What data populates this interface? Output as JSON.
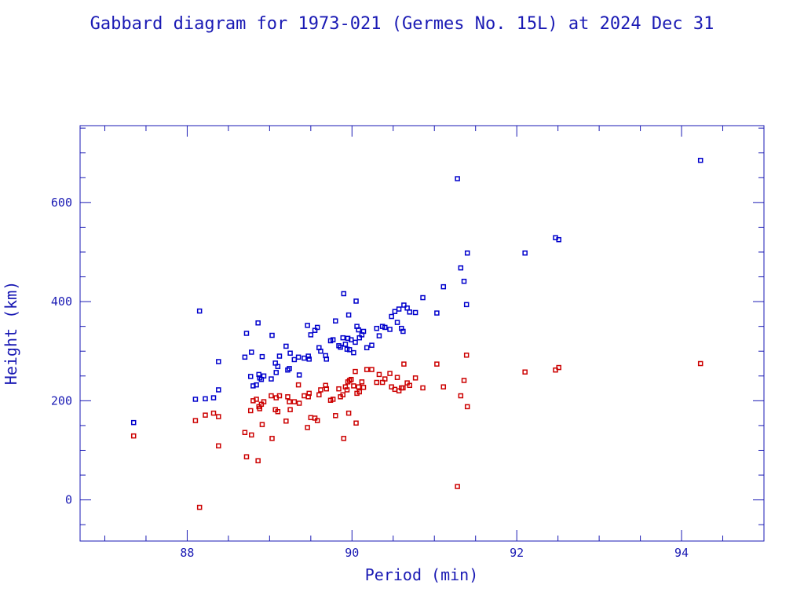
{
  "chart_data": {
    "type": "scatter",
    "title": "Gabbard diagram for 1973-021 (Germes No. 15L) at 2024 Dec 31",
    "xlabel": "Period (min)",
    "ylabel": "Height (km)",
    "xlim": [
      86.7,
      95.0
    ],
    "ylim": [
      -83,
      755
    ],
    "x_ticks": [
      "88",
      "90",
      "92",
      "94"
    ],
    "y_ticks": [
      "0",
      "200",
      "400",
      "600"
    ],
    "grid": false,
    "colors": {
      "axes": "#1a1ab4",
      "apogee": "#0000cc",
      "perigee": "#cc0000"
    },
    "series": [
      {
        "role": "apogee",
        "points": [
          [
            87.35,
            156
          ],
          [
            88.1,
            203
          ],
          [
            88.15,
            381
          ],
          [
            88.22,
            204
          ],
          [
            88.32,
            206
          ],
          [
            88.38,
            222
          ],
          [
            88.38,
            279
          ],
          [
            88.7,
            288
          ],
          [
            88.72,
            336
          ],
          [
            88.77,
            249
          ],
          [
            88.78,
            298
          ],
          [
            88.8,
            230
          ],
          [
            88.84,
            232
          ],
          [
            88.86,
            357
          ],
          [
            88.88,
            246
          ],
          [
            88.9,
            243
          ],
          [
            88.91,
            289
          ],
          [
            88.87,
            253
          ],
          [
            88.93,
            250
          ],
          [
            89.02,
            244
          ],
          [
            89.03,
            332
          ],
          [
            89.07,
            276
          ],
          [
            89.08,
            257
          ],
          [
            89.1,
            269
          ],
          [
            89.12,
            290
          ],
          [
            89.2,
            310
          ],
          [
            89.22,
            262
          ],
          [
            89.24,
            265
          ],
          [
            89.25,
            296
          ],
          [
            89.3,
            283
          ],
          [
            89.35,
            288
          ],
          [
            89.36,
            252
          ],
          [
            89.42,
            286
          ],
          [
            89.46,
            352
          ],
          [
            89.47,
            290
          ],
          [
            89.48,
            284
          ],
          [
            89.5,
            333
          ],
          [
            89.55,
            342
          ],
          [
            89.58,
            348
          ],
          [
            89.6,
            307
          ],
          [
            89.62,
            300
          ],
          [
            89.68,
            291
          ],
          [
            89.69,
            284
          ],
          [
            89.74,
            321
          ],
          [
            89.77,
            323
          ],
          [
            89.8,
            361
          ],
          [
            89.84,
            311
          ],
          [
            89.86,
            308
          ],
          [
            89.89,
            327
          ],
          [
            89.9,
            416
          ],
          [
            89.92,
            314
          ],
          [
            89.94,
            304
          ],
          [
            89.95,
            326
          ],
          [
            89.96,
            373
          ],
          [
            89.97,
            303
          ],
          [
            89.99,
            323
          ],
          [
            90.02,
            297
          ],
          [
            90.04,
            318
          ],
          [
            90.05,
            401
          ],
          [
            90.06,
            350
          ],
          [
            90.08,
            343
          ],
          [
            90.09,
            327
          ],
          [
            90.12,
            333
          ],
          [
            90.14,
            340
          ],
          [
            90.18,
            307
          ],
          [
            90.24,
            312
          ],
          [
            90.3,
            346
          ],
          [
            90.33,
            331
          ],
          [
            90.37,
            350
          ],
          [
            90.4,
            348
          ],
          [
            90.46,
            344
          ],
          [
            90.48,
            370
          ],
          [
            90.52,
            380
          ],
          [
            90.55,
            358
          ],
          [
            90.57,
            385
          ],
          [
            90.6,
            346
          ],
          [
            90.62,
            340
          ],
          [
            90.63,
            393
          ],
          [
            90.67,
            387
          ],
          [
            90.7,
            379
          ],
          [
            90.77,
            378
          ],
          [
            90.86,
            408
          ],
          [
            91.03,
            377
          ],
          [
            91.11,
            430
          ],
          [
            91.28,
            648
          ],
          [
            91.32,
            468
          ],
          [
            91.36,
            441
          ],
          [
            91.39,
            394
          ],
          [
            91.4,
            498
          ],
          [
            92.1,
            498
          ],
          [
            92.47,
            529
          ],
          [
            92.51,
            525
          ],
          [
            94.23,
            685
          ]
        ]
      },
      {
        "role": "perigee",
        "points": [
          [
            87.35,
            129
          ],
          [
            88.1,
            160
          ],
          [
            88.15,
            -15
          ],
          [
            88.22,
            171
          ],
          [
            88.32,
            175
          ],
          [
            88.38,
            168
          ],
          [
            88.38,
            109
          ],
          [
            88.7,
            136
          ],
          [
            88.72,
            87
          ],
          [
            88.77,
            180
          ],
          [
            88.78,
            131
          ],
          [
            88.8,
            200
          ],
          [
            88.84,
            203
          ],
          [
            88.86,
            79
          ],
          [
            88.88,
            184
          ],
          [
            88.9,
            193
          ],
          [
            88.91,
            152
          ],
          [
            88.87,
            188
          ],
          [
            88.93,
            198
          ],
          [
            89.02,
            210
          ],
          [
            89.03,
            124
          ],
          [
            89.07,
            182
          ],
          [
            89.08,
            206
          ],
          [
            89.1,
            178
          ],
          [
            89.12,
            210
          ],
          [
            89.2,
            159
          ],
          [
            89.22,
            208
          ],
          [
            89.24,
            198
          ],
          [
            89.25,
            182
          ],
          [
            89.3,
            198
          ],
          [
            89.35,
            232
          ],
          [
            89.36,
            195
          ],
          [
            89.42,
            210
          ],
          [
            89.46,
            146
          ],
          [
            89.47,
            208
          ],
          [
            89.48,
            215
          ],
          [
            89.5,
            166
          ],
          [
            89.55,
            165
          ],
          [
            89.58,
            160
          ],
          [
            89.6,
            212
          ],
          [
            89.62,
            222
          ],
          [
            89.68,
            231
          ],
          [
            89.69,
            224
          ],
          [
            89.74,
            201
          ],
          [
            89.77,
            203
          ],
          [
            89.8,
            170
          ],
          [
            89.84,
            224
          ],
          [
            89.86,
            208
          ],
          [
            89.89,
            212
          ],
          [
            89.9,
            124
          ],
          [
            89.92,
            228
          ],
          [
            89.94,
            222
          ],
          [
            89.95,
            238
          ],
          [
            89.96,
            175
          ],
          [
            89.97,
            241
          ],
          [
            89.99,
            243
          ],
          [
            90.02,
            230
          ],
          [
            90.04,
            259
          ],
          [
            90.05,
            155
          ],
          [
            90.06,
            215
          ],
          [
            90.08,
            228
          ],
          [
            90.09,
            218
          ],
          [
            90.12,
            238
          ],
          [
            90.14,
            227
          ],
          [
            90.18,
            263
          ],
          [
            90.24,
            263
          ],
          [
            90.3,
            237
          ],
          [
            90.33,
            253
          ],
          [
            90.37,
            237
          ],
          [
            90.4,
            244
          ],
          [
            90.46,
            255
          ],
          [
            90.48,
            228
          ],
          [
            90.52,
            223
          ],
          [
            90.55,
            247
          ],
          [
            90.57,
            220
          ],
          [
            90.6,
            226
          ],
          [
            90.62,
            226
          ],
          [
            90.63,
            274
          ],
          [
            90.67,
            236
          ],
          [
            90.7,
            231
          ],
          [
            90.77,
            246
          ],
          [
            90.86,
            226
          ],
          [
            91.03,
            274
          ],
          [
            91.11,
            228
          ],
          [
            91.28,
            27
          ],
          [
            91.32,
            210
          ],
          [
            91.36,
            241
          ],
          [
            91.39,
            292
          ],
          [
            91.4,
            188
          ],
          [
            92.1,
            258
          ],
          [
            92.47,
            262
          ],
          [
            92.51,
            267
          ],
          [
            94.23,
            275
          ]
        ]
      }
    ]
  }
}
